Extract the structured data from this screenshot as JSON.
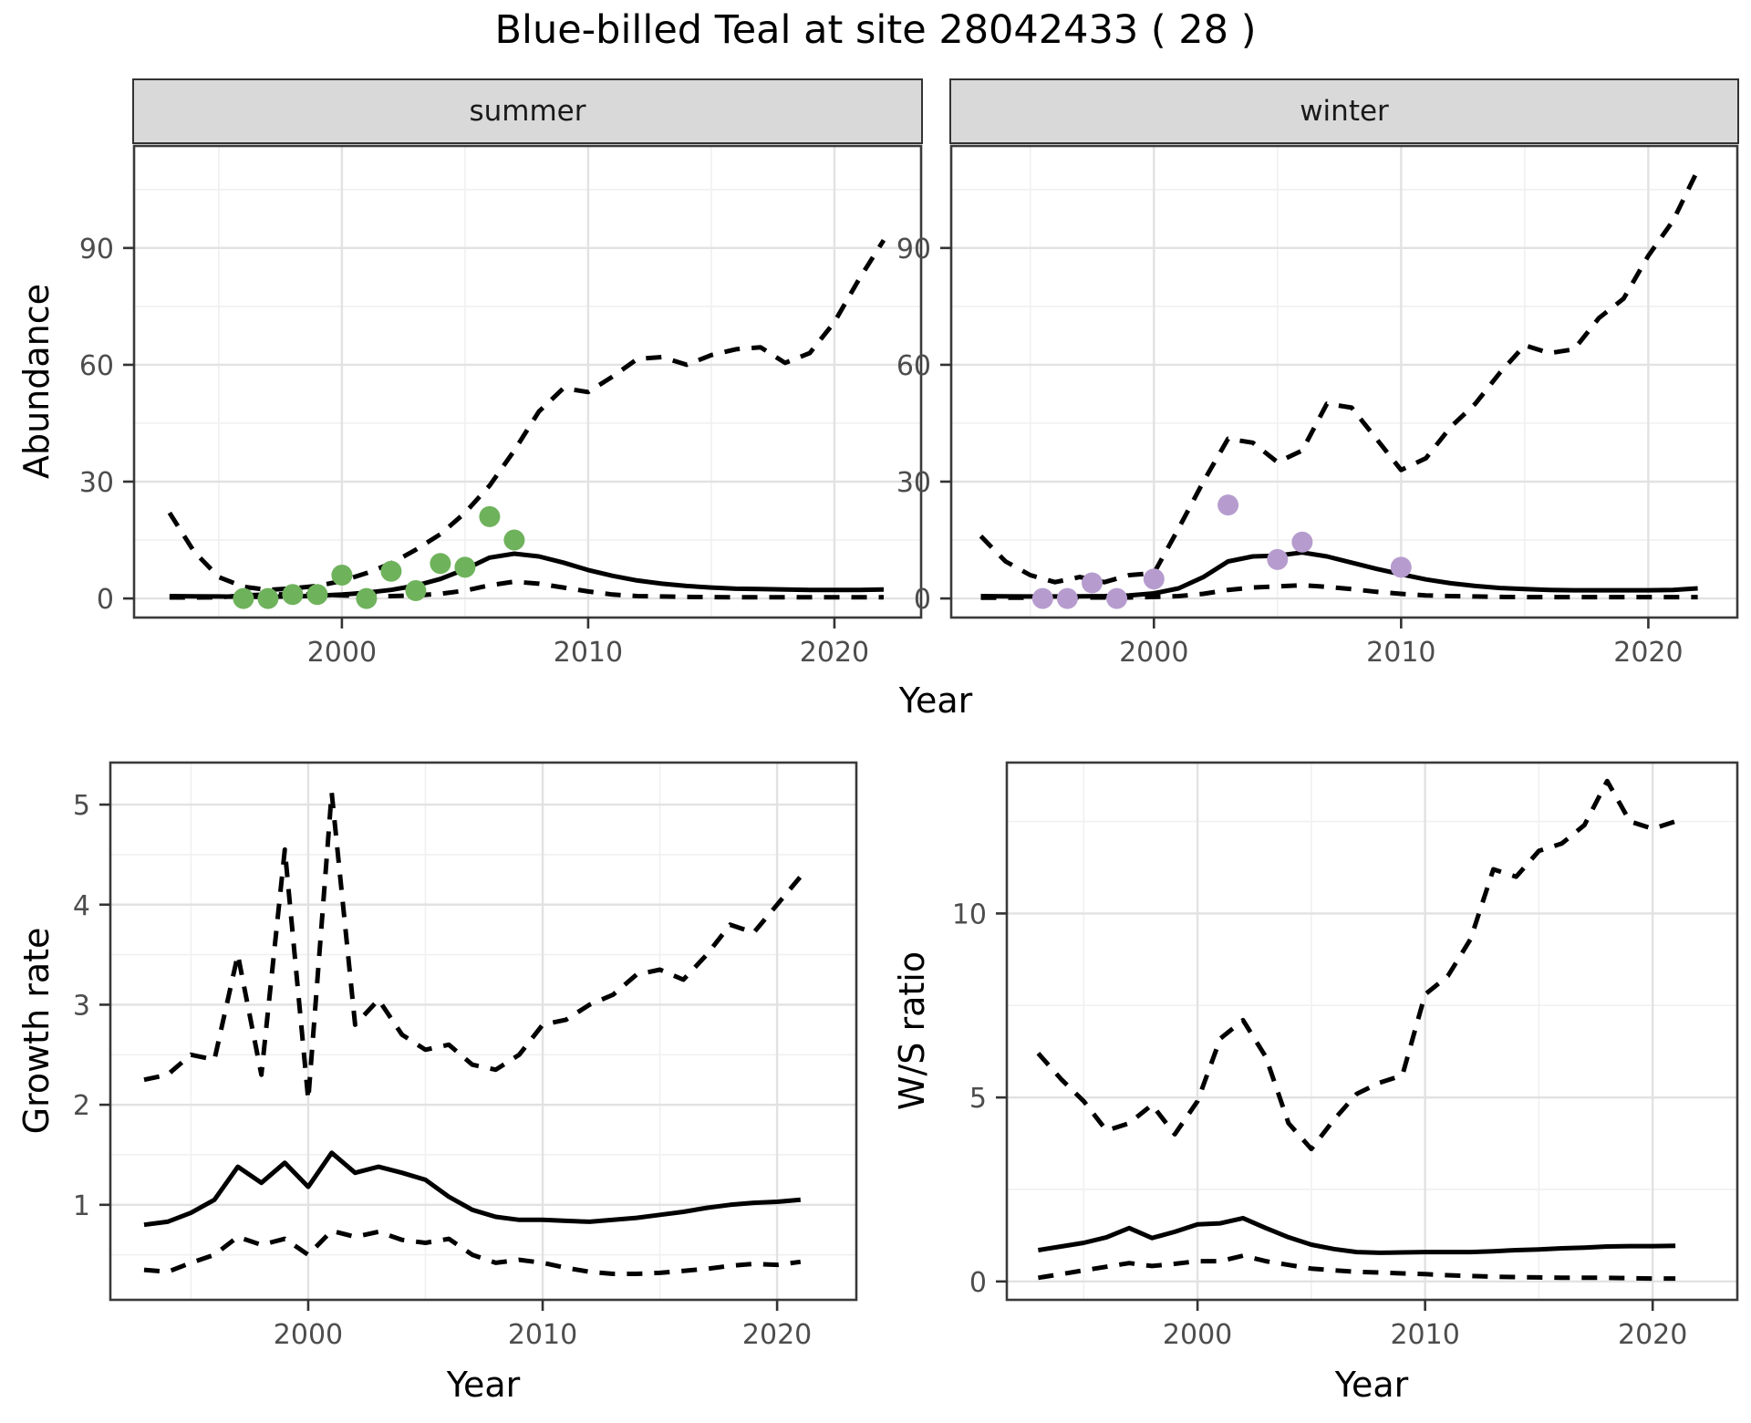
{
  "title": "Blue-billed Teal at site 28042433 ( 28 )",
  "facets": {
    "summer": "summer",
    "winter": "winter"
  },
  "axis_titles": {
    "year": "Year",
    "abundance": "Abundance",
    "growth_rate": "Growth rate",
    "ws_ratio": "W/S ratio"
  },
  "colors": {
    "summer_points": "#6FB25C",
    "winter_points": "#B69CCE",
    "line": "#000000",
    "strip_bg": "#D9D9D9",
    "grid_major": "#E2E2E2",
    "grid_minor": "#F0F0F0",
    "panel_border": "#3A3A3A",
    "tick_text": "#4D4D4D"
  },
  "chart_data": [
    {
      "id": "abundance_summer",
      "type": "line",
      "facet": "summer",
      "xlabel": "Year",
      "ylabel": "Abundance",
      "xlim": [
        1991.56,
        2023.52
      ],
      "ylim": [
        -4.9,
        116.2
      ],
      "xticks": {
        "major": [
          2000,
          2010,
          2020
        ],
        "minor": [
          1995,
          2005,
          2015
        ],
        "labels": [
          "2000",
          "2010",
          "2020"
        ]
      },
      "yticks": {
        "major": [
          0,
          30,
          60,
          90
        ],
        "minor": [
          15,
          45,
          75,
          105
        ],
        "labels": [
          "0",
          "30",
          "60",
          "90"
        ]
      },
      "series": [
        {
          "name": "median",
          "style": "solid",
          "x": [
            1993,
            1994,
            1995,
            1996,
            1997,
            1998,
            1999,
            2000,
            2001,
            2002,
            2003,
            2004,
            2005,
            2006,
            2007,
            2008,
            2009,
            2010,
            2011,
            2012,
            2013,
            2014,
            2015,
            2016,
            2017,
            2018,
            2019,
            2020,
            2021,
            2022
          ],
          "y": [
            0.6,
            0.55,
            0.5,
            0.45,
            0.45,
            0.55,
            0.7,
            1.0,
            1.5,
            2.2,
            3.3,
            5.0,
            7.5,
            10.5,
            11.5,
            10.8,
            9.2,
            7.3,
            5.8,
            4.6,
            3.8,
            3.2,
            2.8,
            2.5,
            2.4,
            2.3,
            2.2,
            2.2,
            2.2,
            2.3
          ]
        },
        {
          "name": "upper_ci",
          "style": "dashed",
          "x": [
            1993,
            1994,
            1995,
            1996,
            1997,
            1998,
            1999,
            2000,
            2001,
            2002,
            2003,
            2004,
            2005,
            2006,
            2007,
            2008,
            2009,
            2010,
            2011,
            2012,
            2013,
            2014,
            2015,
            2016,
            2017,
            2018,
            2019,
            2020,
            2021,
            2022
          ],
          "y": [
            22,
            12,
            5.5,
            3.0,
            2.2,
            2.6,
            3.2,
            4.5,
            6.5,
            9,
            12.5,
            16.5,
            22,
            29,
            38,
            48,
            54,
            53,
            57,
            61.5,
            62,
            60,
            62.5,
            64,
            64.5,
            60.5,
            63,
            71,
            82,
            92
          ]
        },
        {
          "name": "lower_ci",
          "style": "dashed",
          "x": [
            1993,
            1994,
            1995,
            1996,
            1997,
            1998,
            1999,
            2000,
            2001,
            2002,
            2003,
            2004,
            2005,
            2006,
            2007,
            2008,
            2009,
            2010,
            2011,
            2012,
            2013,
            2014,
            2015,
            2016,
            2017,
            2018,
            2019,
            2020,
            2021,
            2022
          ],
          "y": [
            0.25,
            0.25,
            0.3,
            0.8,
            1.0,
            1.1,
            1.0,
            0.8,
            0.6,
            0.6,
            0.8,
            1.2,
            2.0,
            3.4,
            4.3,
            3.8,
            2.8,
            1.8,
            1.0,
            0.6,
            0.5,
            0.4,
            0.35,
            0.3,
            0.3,
            0.3,
            0.3,
            0.3,
            0.3,
            0.3
          ]
        }
      ],
      "points": {
        "name": "observed-counts-summer",
        "color": "#6FB25C",
        "x": [
          1996,
          1997,
          1998,
          1999,
          2000,
          2001,
          2002,
          2003,
          2004,
          2005,
          2006,
          2007
        ],
        "y": [
          0,
          0,
          1,
          1,
          6,
          0,
          7,
          2,
          9,
          8,
          21,
          15
        ]
      }
    },
    {
      "id": "abundance_winter",
      "type": "line",
      "facet": "winter",
      "xlabel": "Year",
      "ylabel": "Abundance",
      "xlim": [
        1991.8,
        2023.6
      ],
      "ylim": [
        -4.9,
        116.2
      ],
      "xticks": {
        "major": [
          2000,
          2010,
          2020
        ],
        "minor": [
          1995,
          2005,
          2015
        ],
        "labels": [
          "2000",
          "2010",
          "2020"
        ]
      },
      "yticks": {
        "major": [
          0,
          30,
          60,
          90
        ],
        "minor": [
          15,
          45,
          75,
          105
        ],
        "labels": [
          "0",
          "30",
          "60",
          "90"
        ]
      },
      "series": [
        {
          "name": "median",
          "style": "solid",
          "x": [
            1993,
            1994,
            1995,
            1996,
            1997,
            1998,
            1999,
            2000,
            2001,
            2002,
            2003,
            2004,
            2005,
            2006,
            2007,
            2008,
            2009,
            2010,
            2011,
            2012,
            2013,
            2014,
            2015,
            2016,
            2017,
            2018,
            2019,
            2020,
            2021,
            2022
          ],
          "y": [
            0.6,
            0.55,
            0.5,
            0.5,
            0.55,
            0.6,
            0.8,
            1.3,
            2.6,
            5.5,
            9.5,
            10.8,
            11.0,
            11.8,
            10.8,
            9.2,
            7.6,
            6.2,
            4.9,
            3.9,
            3.2,
            2.7,
            2.4,
            2.2,
            2.1,
            2.1,
            2.1,
            2.1,
            2.2,
            2.6
          ]
        },
        {
          "name": "upper_ci",
          "style": "dashed",
          "x": [
            1993,
            1994,
            1995,
            1996,
            1997,
            1998,
            1999,
            2000,
            2001,
            2002,
            2003,
            2004,
            2005,
            2006,
            2007,
            2008,
            2009,
            2010,
            2011,
            2012,
            2013,
            2014,
            2015,
            2016,
            2017,
            2018,
            2019,
            2020,
            2021,
            2022
          ],
          "y": [
            16,
            9.5,
            6,
            4.2,
            5.5,
            4.2,
            6,
            6.5,
            18,
            30,
            41,
            40,
            35,
            38,
            50,
            49,
            41,
            33,
            36,
            44,
            50,
            58,
            65,
            63,
            64,
            72,
            77,
            88,
            97,
            110
          ]
        },
        {
          "name": "lower_ci",
          "style": "dashed",
          "x": [
            1993,
            1994,
            1995,
            1996,
            1997,
            1998,
            1999,
            2000,
            2001,
            2002,
            2003,
            2004,
            2005,
            2006,
            2007,
            2008,
            2009,
            2010,
            2011,
            2012,
            2013,
            2014,
            2015,
            2016,
            2017,
            2018,
            2019,
            2020,
            2021,
            2022
          ],
          "y": [
            0.2,
            0.2,
            0.2,
            0.2,
            0.25,
            0.25,
            0.25,
            0.4,
            0.6,
            1.2,
            2.2,
            2.8,
            3.1,
            3.4,
            3.0,
            2.4,
            1.7,
            1.2,
            0.8,
            0.6,
            0.5,
            0.4,
            0.35,
            0.35,
            0.35,
            0.35,
            0.35,
            0.35,
            0.35,
            0.35
          ]
        }
      ],
      "points": {
        "name": "observed-counts-winter",
        "color": "#B69CCE",
        "x": [
          1995.5,
          1996.5,
          1997.5,
          1998.5,
          2000,
          2003,
          2005,
          2006,
          2010
        ],
        "y": [
          0,
          0,
          4,
          0,
          5,
          24,
          10,
          14.5,
          8
        ]
      }
    },
    {
      "id": "growth_rate",
      "type": "line",
      "facet": "",
      "xlabel": "Year",
      "ylabel": "Growth rate",
      "xlim": [
        1991.56,
        2023.38
      ],
      "ylim": [
        0.05,
        5.42
      ],
      "xticks": {
        "major": [
          2000,
          2010,
          2020
        ],
        "minor": [
          1995,
          2005,
          2015
        ],
        "labels": [
          "2000",
          "2010",
          "2020"
        ]
      },
      "yticks": {
        "major": [
          1,
          2,
          3,
          4,
          5
        ],
        "minor": [
          0.5,
          1.5,
          2.5,
          3.5,
          4.5
        ],
        "labels": [
          "1",
          "2",
          "3",
          "4",
          "5"
        ]
      },
      "series": [
        {
          "name": "median",
          "style": "solid",
          "x": [
            1993,
            1994,
            1995,
            1996,
            1997,
            1998,
            1999,
            2000,
            2001,
            2002,
            2003,
            2004,
            2005,
            2006,
            2007,
            2008,
            2009,
            2010,
            2011,
            2012,
            2013,
            2014,
            2015,
            2016,
            2017,
            2018,
            2019,
            2020,
            2021
          ],
          "y": [
            0.8,
            0.83,
            0.92,
            1.05,
            1.38,
            1.22,
            1.42,
            1.18,
            1.52,
            1.32,
            1.38,
            1.32,
            1.25,
            1.08,
            0.95,
            0.88,
            0.85,
            0.85,
            0.84,
            0.83,
            0.85,
            0.87,
            0.9,
            0.93,
            0.97,
            1.0,
            1.02,
            1.03,
            1.05
          ]
        },
        {
          "name": "upper_ci",
          "style": "dashed",
          "x": [
            1993,
            1994,
            1995,
            1996,
            1997,
            1998,
            1999,
            2000,
            2001,
            2002,
            2003,
            2004,
            2005,
            2006,
            2007,
            2008,
            2009,
            2010,
            2011,
            2012,
            2013,
            2014,
            2015,
            2016,
            2017,
            2018,
            2019,
            2020,
            2021
          ],
          "y": [
            2.25,
            2.3,
            2.5,
            2.45,
            3.5,
            2.3,
            4.55,
            2.05,
            5.12,
            2.8,
            3.05,
            2.7,
            2.55,
            2.6,
            2.4,
            2.35,
            2.5,
            2.8,
            2.85,
            3.0,
            3.1,
            3.3,
            3.35,
            3.25,
            3.5,
            3.8,
            3.72,
            4.0,
            4.28
          ]
        },
        {
          "name": "lower_ci",
          "style": "dashed",
          "x": [
            1993,
            1994,
            1995,
            1996,
            1997,
            1998,
            1999,
            2000,
            2001,
            2002,
            2003,
            2004,
            2005,
            2006,
            2007,
            2008,
            2009,
            2010,
            2011,
            2012,
            2013,
            2014,
            2015,
            2016,
            2017,
            2018,
            2019,
            2020,
            2021
          ],
          "y": [
            0.35,
            0.33,
            0.42,
            0.5,
            0.68,
            0.6,
            0.66,
            0.5,
            0.74,
            0.68,
            0.73,
            0.65,
            0.62,
            0.66,
            0.5,
            0.42,
            0.45,
            0.42,
            0.37,
            0.33,
            0.31,
            0.31,
            0.32,
            0.34,
            0.36,
            0.39,
            0.41,
            0.4,
            0.43
          ]
        }
      ],
      "points": null
    },
    {
      "id": "ws_ratio",
      "type": "line",
      "facet": "",
      "xlabel": "Year",
      "ylabel": "W/S ratio",
      "xlim": [
        1991.62,
        2023.72
      ],
      "ylim": [
        -0.5,
        14.1
      ],
      "xticks": {
        "major": [
          2000,
          2010,
          2020
        ],
        "minor": [
          1995,
          2005,
          2015
        ],
        "labels": [
          "2000",
          "2010",
          "2020"
        ]
      },
      "yticks": {
        "major": [
          0,
          5,
          10
        ],
        "minor": [
          2.5,
          7.5,
          12.5
        ],
        "labels": [
          "0",
          "5",
          "10"
        ]
      },
      "series": [
        {
          "name": "median",
          "style": "solid",
          "x": [
            1993,
            1994,
            1995,
            1996,
            1997,
            1998,
            1999,
            2000,
            2001,
            2002,
            2003,
            2004,
            2005,
            2006,
            2007,
            2008,
            2009,
            2010,
            2011,
            2012,
            2013,
            2014,
            2015,
            2016,
            2017,
            2018,
            2019,
            2020,
            2021
          ],
          "y": [
            0.85,
            0.95,
            1.05,
            1.2,
            1.45,
            1.18,
            1.35,
            1.55,
            1.58,
            1.72,
            1.45,
            1.2,
            1.0,
            0.88,
            0.8,
            0.78,
            0.79,
            0.8,
            0.8,
            0.8,
            0.82,
            0.85,
            0.87,
            0.9,
            0.92,
            0.95,
            0.96,
            0.96,
            0.97
          ]
        },
        {
          "name": "upper_ci",
          "style": "dashed",
          "x": [
            1993,
            1994,
            1995,
            1996,
            1997,
            1998,
            1999,
            2000,
            2001,
            2002,
            2003,
            2004,
            2005,
            2006,
            2007,
            2008,
            2009,
            2010,
            2011,
            2012,
            2013,
            2014,
            2015,
            2016,
            2017,
            2018,
            2019,
            2020,
            2021
          ],
          "y": [
            6.2,
            5.5,
            4.9,
            4.1,
            4.3,
            4.8,
            4.0,
            4.9,
            6.6,
            7.1,
            6.1,
            4.3,
            3.6,
            4.4,
            5.1,
            5.4,
            5.6,
            7.8,
            8.3,
            9.3,
            11.2,
            11.0,
            11.7,
            11.9,
            12.4,
            13.6,
            12.5,
            12.3,
            12.5
          ]
        },
        {
          "name": "lower_ci",
          "style": "dashed",
          "x": [
            1993,
            1994,
            1995,
            1996,
            1997,
            1998,
            1999,
            2000,
            2001,
            2002,
            2003,
            2004,
            2005,
            2006,
            2007,
            2008,
            2009,
            2010,
            2011,
            2012,
            2013,
            2014,
            2015,
            2016,
            2017,
            2018,
            2019,
            2020,
            2021
          ],
          "y": [
            0.1,
            0.2,
            0.3,
            0.4,
            0.5,
            0.42,
            0.48,
            0.55,
            0.55,
            0.7,
            0.55,
            0.45,
            0.35,
            0.3,
            0.26,
            0.24,
            0.22,
            0.2,
            0.17,
            0.15,
            0.13,
            0.12,
            0.11,
            0.1,
            0.1,
            0.1,
            0.09,
            0.08,
            0.08
          ]
        }
      ],
      "points": null
    }
  ]
}
